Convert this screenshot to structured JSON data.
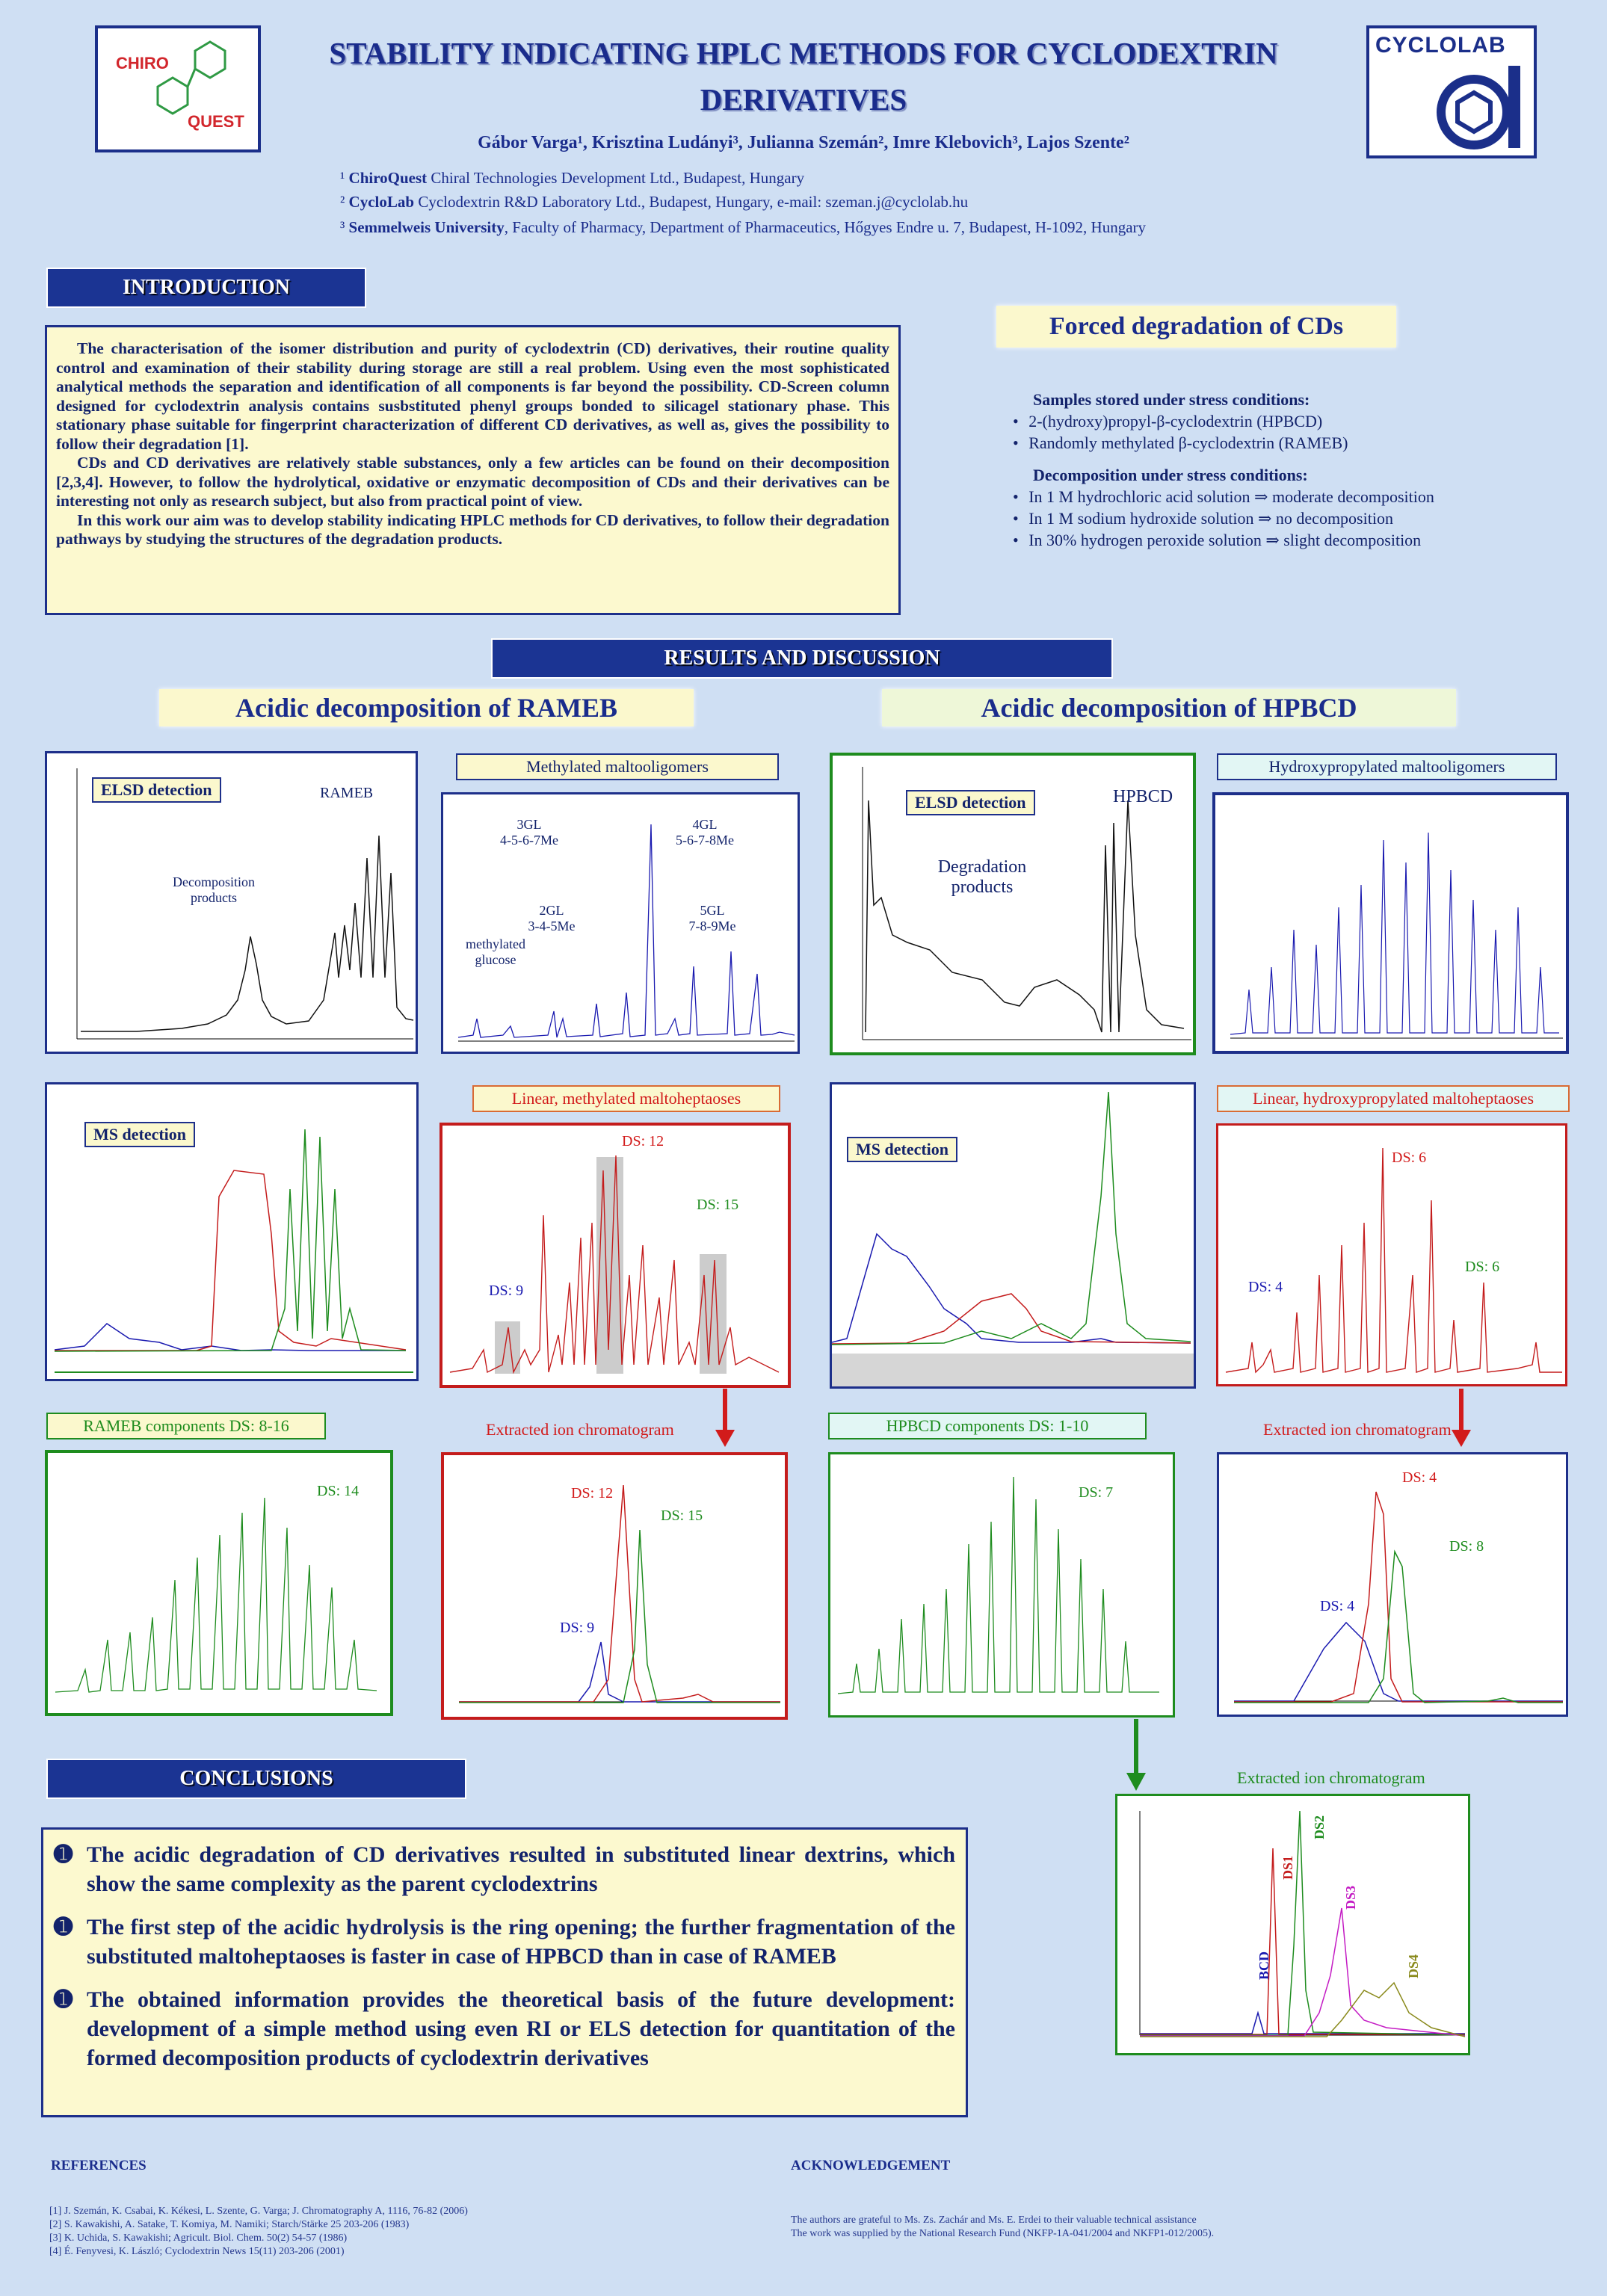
{
  "header": {
    "title_line1": "STABILITY INDICATING HPLC METHODS FOR CYCLODEXTRIN",
    "title_line2": "DERIVATIVES",
    "authors": "Gábor Varga¹, Krisztina Ludányi³, Julianna Szemán², Imre Klebovich³, Lajos Szente²",
    "affiliations": [
      {
        "num": "¹",
        "bold": "ChiroQuest",
        "rest": " Chiral Technologies Development Ltd., Budapest, Hungary"
      },
      {
        "num": "²",
        "bold": "CycloLab",
        "rest": " Cyclodextrin R&D Laboratory Ltd., Budapest, Hungary, e-mail: szeman.j@cyclolab.hu"
      },
      {
        "num": "³",
        "bold": "Semmelweis University",
        "rest": ", Faculty of Pharmacy, Department of Pharmaceutics, Hőgyes  Endre u. 7, Budapest, H-1092, Hungary"
      }
    ],
    "logo_left": {
      "top": "CHIRO",
      "bottom": "QUEST"
    },
    "logo_right": "CYCLOLAB"
  },
  "introduction": {
    "heading": "INTRODUCTION",
    "paragraphs": [
      "The characterisation of the isomer distribution and purity of cyclodextrin (CD) derivatives, their routine quality control and examination of their stability during storage are still a real problem. Using even the most sophisticated analytical methods the separation and identification of all components is far beyond the possibility. CD-Screen column designed for cyclodextrin analysis contains susbstituted phenyl groups bonded to silicagel stationary phase. This stationary phase suitable for fingerprint characterization of different CD derivatives, as well as, gives the possibility to follow their degradation [1].",
      "CDs and CD derivatives are relatively stable substances, only a few articles can be found on their decomposition [2,3,4]. However, to follow the hydrolytical, oxidative or enzymatic decomposition of CDs and their derivatives can be interesting not only as research subject, but also from practical point of view.",
      "In this work our aim was to develop stability indicating HPLC methods for CD derivatives, to follow their degradation pathways by studying the structures of the degradation products."
    ]
  },
  "forced": {
    "title": "Forced degradation of CDs",
    "samples_heading": "Samples stored under stress conditions:",
    "samples": [
      "2-(hydroxy)propyl-β-cyclodextrin (HPBCD)",
      "Randomly methylated β-cyclodextrin (RAMEB)"
    ],
    "decomp_heading": "Decomposition under stress conditions:",
    "decomp": [
      "In 1 M hydrochloric acid solution ⇒ moderate decomposition",
      "In 1 M sodium hydroxide solution ⇒ no decomposition",
      "In 30% hydrogen peroxide solution  ⇒ slight decomposition"
    ]
  },
  "results": {
    "heading": "RESULTS AND DISCUSSION",
    "rameb_title": "Acidic decomposition  of RAMEB",
    "hpbcd_title": "Acidic decomposition  of HPBCD",
    "labels": {
      "methylated_malto": "Methylated maltooligomers",
      "hydroxy_malto": "Hydroxypropylated maltooligomers",
      "linear_methyl": "Linear, methylated maltoheptaoses",
      "linear_hydroxy": "Linear, hydroxypropylated maltoheptaoses",
      "rameb_components": "RAMEB components DS: 8-16",
      "hpbcd_components": "HPBCD components DS: 1-10",
      "eic1": "Extracted ion chromatogram",
      "eic2": "Extracted ion chromatogram",
      "eic3": "Extracted ion chromatogram"
    },
    "detection": {
      "elsd": "ELSD detection",
      "ms": "MS detection"
    },
    "annotations": {
      "rameb": "RAMEB",
      "decomp_products": "Decomposition products",
      "hpbcd": "HPBCD",
      "degradation_products": "Degradation products",
      "gl3": "3GL",
      "gl3b": "4-5-6-7Me",
      "gl4": "4GL",
      "gl4b": "5-6-7-8Me",
      "gl2": "2GL",
      "gl2b": "3-4-5Me",
      "gl5": "5GL",
      "gl5b": "7-8-9Me",
      "mglucose1": "methylated",
      "mglucose2": "glucose",
      "ds9": "DS: 9",
      "ds12": "DS: 12",
      "ds15": "DS: 15",
      "ds14": "DS: 14",
      "ds6": "DS: 6",
      "ds4": "DS: 4",
      "ds7": "DS: 7",
      "ds8": "DS: 8",
      "bcd": "BCD",
      "ds1": "DS1",
      "ds2": "DS2",
      "ds3": "DS3",
      "ds4v": "DS4"
    }
  },
  "conclusions": {
    "heading": "CONCLUSIONS",
    "bullet": "➊",
    "items": [
      "The acidic degradation of CD derivatives resulted in substituted linear dextrins, which show the same complexity as the parent cyclodextrins",
      "The first step of the acidic hydrolysis is the ring opening; the further fragmentation of the substituted maltoheptaoses is faster in case of HPBCD than in case of RAMEB",
      "The obtained information provides the theoretical basis of the future development: development of a simple method using even RI or ELS detection for quantitation of the formed decomposition products of cyclodextrin derivatives"
    ]
  },
  "references": {
    "heading": "REFERENCES",
    "items": [
      "[1]  J. Szemán,  K. Csabai,  K. Kékesi,  L. Szente,  G. Varga;   J. Chromatography  A, 1116, 76-82 (2006)",
      "[2]  S. Kawakishi,  A. Satake,  T. Komiya,  M. Namiki;  Starch/Stärke  25 203-206 (1983)",
      "[3]  K. Uchida,  S. Kawakishi;  Agricult.  Biol.  Chem.  50(2) 54-57 (1986)",
      "[4]  É. Fenyvesi,  K. László;  Cyclodextrin  News 15(11) 203-206 (2001)"
    ]
  },
  "acknowledgement": {
    "heading": "ACKNOWLEDGEMENT",
    "lines": [
      "The authors are grateful to Ms. Zs. Zachár and Ms. E. Erdei to their valuable technical assistance",
      "The work was supplied by the National Research Fund (NKFP-1A-041/2004  and NKFP1-012/2005)."
    ]
  },
  "colors": {
    "navy": "#1b3493",
    "yellow": "#fbf8cd",
    "red": "#d21b1b",
    "green": "#1e8c1e",
    "blue": "#1a1ab0"
  }
}
